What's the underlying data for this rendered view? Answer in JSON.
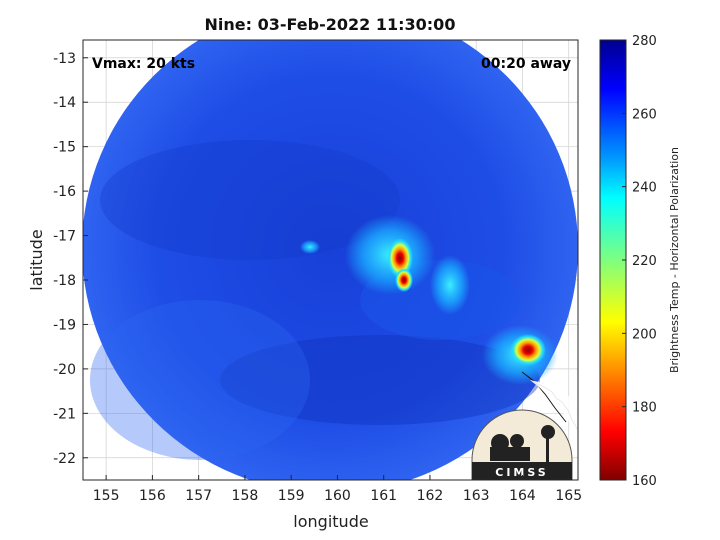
{
  "title": "Nine: 03-Feb-2022 11:30:00",
  "vmax_label": "Vmax: 20 kts",
  "time_away_label": "00:20 away",
  "xlabel": "longitude",
  "ylabel": "latitude",
  "colorbar_label": "Brightness Temp - Horizontal Polarization",
  "logo_text": "CIMSS",
  "chart_data": {
    "type": "heatmap",
    "title": "Nine: 03-Feb-2022 11:30:00",
    "xlabel": "longitude",
    "ylabel": "latitude",
    "xlim": [
      154.5,
      165.2
    ],
    "ylim": [
      -22.5,
      -12.6
    ],
    "xticks": [
      155,
      156,
      157,
      158,
      159,
      160,
      161,
      162,
      163,
      164,
      165
    ],
    "yticks": [
      -13,
      -14,
      -15,
      -16,
      -17,
      -18,
      -19,
      -20,
      -21,
      -22
    ],
    "colorbar": {
      "label": "Brightness Temp - Horizontal Polarization",
      "range": [
        160,
        280
      ],
      "ticks": [
        160,
        180,
        200,
        220,
        240,
        260,
        280
      ],
      "colormap": "jet"
    },
    "swath": {
      "center_lon": 160.0,
      "center_lat": -17.4,
      "radius_deg": 5.3,
      "background_value": 262
    },
    "features": [
      {
        "lon": 161.35,
        "lat": -17.3,
        "value": 175
      },
      {
        "lon": 161.5,
        "lat": -17.9,
        "value": 180
      },
      {
        "lon": 164.05,
        "lat": -19.45,
        "value": 168
      },
      {
        "lon": 159.35,
        "lat": -17.1,
        "value": 230
      },
      {
        "lon": 160.7,
        "lat": -17.0,
        "value": 238
      }
    ],
    "grid": true
  },
  "colors": {
    "background": "#ffffff",
    "swath_base": "#1e4ae0",
    "grid": "#d0d0d0"
  }
}
